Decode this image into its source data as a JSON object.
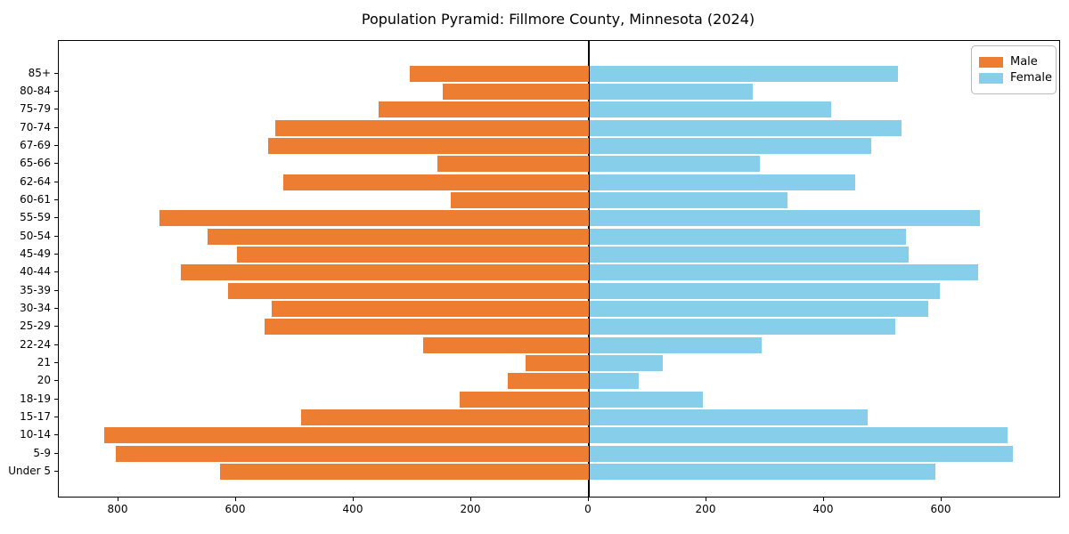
{
  "title": "Population Pyramid: Fillmore County, Minnesota (2024)",
  "legend": {
    "male_label": "Male",
    "female_label": "Female",
    "position": "upper-right"
  },
  "colors": {
    "male": "#ED7D31",
    "female": "#87CEEB",
    "axis": "#000000",
    "background": "#ffffff"
  },
  "chart_data": {
    "type": "bar",
    "subtype": "population-pyramid",
    "orientation": "horizontal",
    "title": "Population Pyramid: Fillmore County, Minnesota (2024)",
    "xlabel": "",
    "ylabel": "",
    "grid": false,
    "legend_position": "upper-right",
    "categories": [
      "85+",
      "80-84",
      "75-79",
      "70-74",
      "67-69",
      "65-66",
      "62-64",
      "60-61",
      "55-59",
      "50-54",
      "45-49",
      "40-44",
      "35-39",
      "30-34",
      "25-29",
      "22-24",
      "21",
      "20",
      "18-19",
      "15-17",
      "10-14",
      "5-9",
      "Under 5"
    ],
    "series": [
      {
        "name": "Male",
        "side": "left",
        "color": "#ED7D31",
        "values": [
          304,
          248,
          358,
          533,
          545,
          257,
          520,
          235,
          730,
          648,
          598,
          694,
          613,
          540,
          552,
          282,
          107,
          138,
          219,
          490,
          824,
          805,
          628
        ]
      },
      {
        "name": "Female",
        "side": "right",
        "color": "#87CEEB",
        "values": [
          524,
          278,
          410,
          530,
          479,
          289,
          452,
          337,
          663,
          538,
          543,
          660,
          595,
          576,
          519,
          293,
          124,
          84,
          193,
          473,
          710,
          720,
          588
        ]
      }
    ],
    "x_tick_values": [
      -800,
      -600,
      -400,
      -200,
      0,
      200,
      400,
      600
    ],
    "x_tick_labels": [
      "800",
      "600",
      "400",
      "200",
      "0",
      "200",
      "400",
      "600"
    ],
    "xlim": [
      -900,
      800
    ],
    "center_line_at": 0
  }
}
